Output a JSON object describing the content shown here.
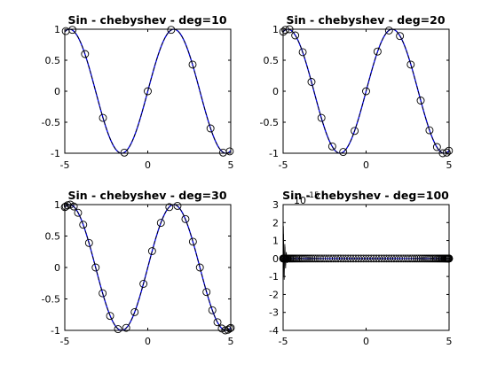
{
  "chart_data": [
    {
      "type": "line",
      "title": "Sin - chebyshev - deg=10",
      "xlim": [
        -5,
        5
      ],
      "ylim": [
        -1,
        1
      ],
      "x_ticks": [
        -5,
        0,
        5
      ],
      "x_tick_labels": [
        "-5",
        "0",
        "5"
      ],
      "y_ticks": [
        -1,
        -0.5,
        0,
        0.5,
        1
      ],
      "y_tick_labels": [
        "-1",
        "-0.5",
        "0",
        "0.5",
        "1"
      ],
      "grid": false,
      "series": [
        {
          "style": "blue-solid",
          "function": "sin(x)",
          "x_range": [
            -5,
            5
          ]
        },
        {
          "style": "black-dashed",
          "function": "sin(x)",
          "x_range": [
            -5,
            5
          ]
        },
        {
          "style": "black-circle-markers",
          "x": [
            -4.94,
            -4.54,
            -3.78,
            -2.7,
            -1.41,
            0.0,
            1.41,
            2.7,
            3.78,
            4.54,
            4.94
          ],
          "y": [
            0.97,
            0.99,
            0.6,
            -0.43,
            -0.99,
            0.0,
            0.99,
            0.43,
            -0.6,
            -0.99,
            -0.97
          ]
        }
      ]
    },
    {
      "type": "line",
      "title": "Sin - chebyshev - deg=20",
      "xlim": [
        -5,
        5
      ],
      "ylim": [
        -1,
        1
      ],
      "x_ticks": [
        -5,
        0,
        5
      ],
      "x_tick_labels": [
        "-5",
        "0",
        "5"
      ],
      "y_ticks": [
        -1,
        -0.5,
        0,
        0.5,
        1
      ],
      "y_tick_labels": [
        "-1",
        "-0.5",
        "0",
        "0.5",
        "1"
      ],
      "grid": false,
      "series": [
        {
          "style": "blue-solid",
          "function": "sin(x)",
          "x_range": [
            -5,
            5
          ]
        },
        {
          "style": "black-dashed",
          "function": "sin(x)",
          "x_range": [
            -5,
            5
          ]
        },
        {
          "style": "black-circle-markers",
          "x": [
            -4.99,
            -4.86,
            -4.62,
            -4.27,
            -3.82,
            -3.29,
            -2.69,
            -2.04,
            -1.38,
            -0.69,
            0.0,
            0.69,
            1.38,
            2.04,
            2.69,
            3.29,
            3.82,
            4.27,
            4.62,
            4.86,
            4.99
          ],
          "y": [
            0.96,
            0.99,
            1.0,
            0.9,
            0.63,
            0.15,
            -0.43,
            -0.89,
            -0.98,
            -0.64,
            0.0,
            0.64,
            0.98,
            0.89,
            0.43,
            -0.15,
            -0.63,
            -0.9,
            -1.0,
            -0.99,
            -0.96
          ]
        }
      ]
    },
    {
      "type": "line",
      "title": "Sin - chebyshev - deg=30",
      "xlim": [
        -5,
        5
      ],
      "ylim": [
        -1,
        1
      ],
      "x_ticks": [
        -5,
        0,
        5
      ],
      "x_tick_labels": [
        "-5",
        "0",
        "5"
      ],
      "y_ticks": [
        -1,
        -0.5,
        0,
        0.5,
        1
      ],
      "y_tick_labels": [
        "-1",
        "-0.5",
        "0",
        "0.5",
        "1"
      ],
      "grid": false,
      "series": [
        {
          "style": "blue-solid",
          "function": "sin(x)",
          "x_range": [
            -5,
            5
          ]
        },
        {
          "style": "black-dashed",
          "function": "sin(x)",
          "x_range": [
            -5,
            5
          ]
        },
        {
          "style": "black-circle-markers",
          "x": [
            -5.0,
            -4.94,
            -4.83,
            -4.67,
            -4.46,
            -4.2,
            -3.89,
            -3.54,
            -3.14,
            -2.72,
            -2.27,
            -1.79,
            -1.3,
            -0.79,
            -0.26,
            0.26,
            0.79,
            1.3,
            1.79,
            2.27,
            2.72,
            3.14,
            3.54,
            3.89,
            4.2,
            4.46,
            4.67,
            4.83,
            4.94,
            5.0
          ],
          "y": [
            0.96,
            0.97,
            0.99,
            1.0,
            0.97,
            0.87,
            0.68,
            0.39,
            0.0,
            -0.41,
            -0.77,
            -0.98,
            -0.96,
            -0.71,
            -0.26,
            0.26,
            0.71,
            0.96,
            0.98,
            0.77,
            0.41,
            0.0,
            -0.39,
            -0.68,
            -0.87,
            -0.97,
            -1.0,
            -0.99,
            -0.97,
            -0.96
          ]
        }
      ]
    },
    {
      "type": "line",
      "title": "Sin - chebyshev - deg=100",
      "xlim": [
        -5,
        5
      ],
      "ylim": [
        -4e-15,
        3e-15
      ],
      "y_exponent_label": "10",
      "y_exponent_power": "-15",
      "x_ticks": [
        -5,
        0,
        5
      ],
      "x_tick_labels": [
        "-5",
        "0",
        "5"
      ],
      "y_ticks": [
        -4e-15,
        -3e-15,
        -2e-15,
        -1e-15,
        0,
        1e-15,
        2e-15,
        3e-15
      ],
      "y_tick_labels": [
        "-4",
        "-3",
        "-2",
        "-1",
        "0",
        "1",
        "2",
        "3"
      ],
      "grid": false,
      "series": [
        {
          "style": "black-circle-markers",
          "node_count": 101,
          "y_value": 0,
          "note_visible": "error oscillation near x=-5"
        }
      ]
    }
  ]
}
